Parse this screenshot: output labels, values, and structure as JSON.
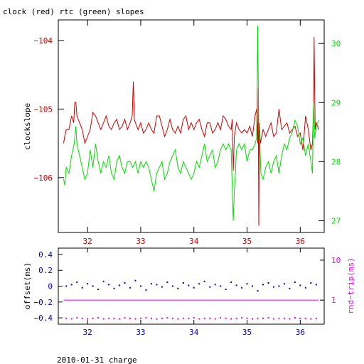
{
  "title": "clock (red) rtc (green) slopes",
  "footer": "2010-01-31 charge",
  "colors": {
    "frame": "#000000",
    "clock": "#cc0000",
    "rtc": "#00dd00",
    "offset": "#0000cc",
    "rndtrip": "#ee00ee"
  },
  "chart_data": [
    {
      "type": "line",
      "title": "clock (red) rtc (green) slopes",
      "xlim": [
        31.45,
        36.45
      ],
      "x_ticks": [
        32,
        33,
        34,
        35,
        36
      ],
      "x_tick_labels": [
        "32",
        "33",
        "34",
        "35",
        "36"
      ],
      "ylabel": "clockslope",
      "ylim": [
        -106.8,
        -103.7
      ],
      "y_ticks": [
        -104,
        -105,
        -106
      ],
      "y_tick_labels": [
        "−104",
        "−105",
        "−106"
      ],
      "y2lim": [
        26.8,
        30.4
      ],
      "y2_ticks": [
        27,
        28,
        29,
        30
      ],
      "y2_tick_labels": [
        "27",
        "28",
        "29",
        "30"
      ],
      "series": [
        {
          "name": "clock",
          "axis": "left",
          "x": [
            31.55,
            31.57,
            31.6,
            31.65,
            31.7,
            31.74,
            31.76,
            31.78,
            31.8,
            31.85,
            31.9,
            31.95,
            32.0,
            32.05,
            32.1,
            32.15,
            32.2,
            32.25,
            32.3,
            32.35,
            32.4,
            32.45,
            32.5,
            32.55,
            32.6,
            32.65,
            32.7,
            32.75,
            32.8,
            32.84,
            32.86,
            32.88,
            32.9,
            32.95,
            33.0,
            33.05,
            33.1,
            33.15,
            33.2,
            33.25,
            33.3,
            33.35,
            33.4,
            33.45,
            33.5,
            33.55,
            33.6,
            33.65,
            33.7,
            33.75,
            33.8,
            33.85,
            33.9,
            33.95,
            34.0,
            34.05,
            34.1,
            34.15,
            34.2,
            34.25,
            34.3,
            34.35,
            34.4,
            34.45,
            34.5,
            34.55,
            34.6,
            34.65,
            34.7,
            34.72,
            34.74,
            34.76,
            34.8,
            34.85,
            34.9,
            34.95,
            35.0,
            35.05,
            35.1,
            35.15,
            35.18,
            35.2,
            35.21,
            35.22,
            35.23,
            35.25,
            35.3,
            35.35,
            35.4,
            35.45,
            35.5,
            35.55,
            35.6,
            35.65,
            35.7,
            35.75,
            35.8,
            35.85,
            35.9,
            35.95,
            36.0,
            36.05,
            36.1,
            36.15,
            36.2,
            36.23,
            36.25,
            36.26,
            36.28,
            36.3,
            36.35
          ],
          "y": [
            -105.5,
            -105.4,
            -105.3,
            -105.3,
            -105.1,
            -105.2,
            -104.9,
            -104.9,
            -105.1,
            -105.2,
            -105.3,
            -105.5,
            -105.4,
            -105.3,
            -105.05,
            -105.1,
            -105.2,
            -105.3,
            -105.2,
            -105.1,
            -105.25,
            -105.3,
            -105.2,
            -105.15,
            -105.3,
            -105.25,
            -105.15,
            -105.3,
            -105.2,
            -105.1,
            -104.6,
            -105.15,
            -105.2,
            -105.3,
            -105.2,
            -105.35,
            -105.3,
            -105.2,
            -105.3,
            -105.35,
            -105.1,
            -105.1,
            -105.25,
            -105.4,
            -105.3,
            -105.15,
            -105.3,
            -105.35,
            -105.25,
            -105.35,
            -105.15,
            -105.1,
            -105.3,
            -105.2,
            -105.3,
            -105.2,
            -105.15,
            -105.3,
            -105.4,
            -105.2,
            -105.2,
            -105.35,
            -105.3,
            -105.2,
            -105.3,
            -105.1,
            -105.15,
            -105.25,
            -105.3,
            -105.15,
            -105.9,
            -105.4,
            -105.2,
            -105.3,
            -105.35,
            -105.3,
            -105.35,
            -105.25,
            -105.4,
            -105.1,
            -105.0,
            -105.5,
            -104.7,
            -106.7,
            -105.2,
            -105.5,
            -105.3,
            -105.4,
            -105.3,
            -105.2,
            -105.4,
            -105.35,
            -105.0,
            -105.3,
            -105.25,
            -105.2,
            -105.35,
            -105.3,
            -105.25,
            -105.4,
            -105.35,
            -105.6,
            -105.1,
            -105.3,
            -105.6,
            -105.5,
            -105.0,
            -103.95,
            -105.3,
            -105.2,
            -105.3
          ],
          "color": "#cc0000"
        },
        {
          "name": "rtc",
          "axis": "right",
          "x": [
            31.55,
            31.57,
            31.6,
            31.65,
            31.7,
            31.75,
            31.78,
            31.8,
            31.85,
            31.9,
            31.95,
            32.0,
            32.05,
            32.1,
            32.15,
            32.2,
            32.25,
            32.3,
            32.35,
            32.4,
            32.45,
            32.5,
            32.55,
            32.6,
            32.65,
            32.7,
            32.75,
            32.8,
            32.85,
            32.9,
            32.95,
            33.0,
            33.05,
            33.1,
            33.15,
            33.2,
            33.25,
            33.3,
            33.35,
            33.4,
            33.45,
            33.5,
            33.55,
            33.6,
            33.65,
            33.7,
            33.75,
            33.8,
            33.85,
            33.9,
            33.95,
            34.0,
            34.05,
            34.1,
            34.15,
            34.2,
            34.25,
            34.3,
            34.35,
            34.4,
            34.45,
            34.5,
            34.55,
            34.6,
            34.65,
            34.7,
            34.72,
            34.74,
            34.76,
            34.78,
            34.8,
            34.85,
            34.9,
            34.95,
            35.0,
            35.05,
            35.1,
            35.15,
            35.18,
            35.2,
            35.22,
            35.24,
            35.26,
            35.3,
            35.35,
            35.4,
            35.45,
            35.5,
            35.55,
            35.6,
            35.65,
            35.7,
            35.75,
            35.8,
            35.85,
            35.9,
            35.95,
            36.0,
            36.05,
            36.1,
            36.15,
            36.2,
            36.23,
            36.25,
            36.27,
            36.3,
            36.35
          ],
          "y": [
            27.7,
            27.6,
            27.9,
            27.8,
            28.1,
            28.3,
            28.6,
            28.3,
            28.1,
            27.9,
            27.7,
            27.8,
            28.2,
            27.9,
            28.3,
            28.0,
            27.8,
            28.0,
            27.9,
            28.1,
            27.8,
            27.7,
            28.0,
            28.1,
            27.9,
            27.8,
            28.0,
            28.0,
            27.9,
            28.0,
            27.8,
            28.0,
            27.9,
            28.0,
            27.9,
            27.7,
            27.5,
            27.8,
            27.9,
            28.0,
            27.7,
            27.8,
            28.0,
            28.1,
            28.2,
            27.9,
            27.8,
            28.0,
            27.9,
            27.8,
            27.7,
            27.8,
            28.0,
            27.9,
            28.1,
            28.3,
            28.0,
            28.1,
            28.2,
            27.9,
            28.0,
            28.2,
            28.3,
            28.2,
            28.3,
            28.2,
            27.6,
            27.0,
            27.5,
            27.8,
            28.2,
            28.3,
            28.2,
            28.3,
            28.0,
            28.2,
            28.2,
            28.3,
            28.4,
            30.3,
            28.5,
            28.3,
            27.8,
            27.7,
            27.9,
            28.0,
            27.8,
            28.0,
            28.1,
            27.8,
            28.1,
            28.3,
            28.2,
            28.4,
            28.5,
            28.7,
            28.6,
            28.3,
            28.4,
            28.1,
            28.3,
            28.0,
            27.8,
            29.0,
            28.4,
            28.6,
            28.7
          ],
          "color": "#00dd00"
        }
      ]
    },
    {
      "type": "scatter",
      "xlim": [
        31.45,
        36.45
      ],
      "x_ticks": [
        32,
        33,
        34,
        35,
        36
      ],
      "x_tick_labels": [
        "32",
        "33",
        "34",
        "35",
        "36"
      ],
      "ylabel": "offset(ms)",
      "ylim": [
        -0.48,
        0.48
      ],
      "y_ticks": [
        0.4,
        0.2,
        0,
        -0.2,
        -0.4
      ],
      "y_tick_labels": [
        "0.4",
        "0.2",
        "0",
        "−0.2",
        "−0.4"
      ],
      "y2label": "rnd−trip(ms)",
      "y2_scale": "log",
      "y2lim": [
        0.25,
        20
      ],
      "y2_ticks": [
        1,
        10
      ],
      "y2_tick_labels": [
        "1",
        "10"
      ],
      "series": [
        {
          "name": "offset",
          "axis": "left",
          "x": [
            31.6,
            31.7,
            31.8,
            31.9,
            32.0,
            32.1,
            32.2,
            32.3,
            32.4,
            32.5,
            32.6,
            32.7,
            32.8,
            32.9,
            33.0,
            33.1,
            33.2,
            33.3,
            33.4,
            33.5,
            33.6,
            33.7,
            33.8,
            33.9,
            34.0,
            34.1,
            34.2,
            34.3,
            34.4,
            34.5,
            34.6,
            34.7,
            34.8,
            34.9,
            35.0,
            35.1,
            35.2,
            35.3,
            35.4,
            35.5,
            35.6,
            35.7,
            35.8,
            35.9,
            36.0,
            36.1,
            36.2,
            36.3
          ],
          "y": [
            0.0,
            0.02,
            0.05,
            -0.02,
            0.03,
            0.0,
            -0.04,
            0.06,
            0.02,
            -0.03,
            0.01,
            0.04,
            -0.02,
            0.07,
            0.0,
            -0.05,
            0.03,
            0.02,
            -0.01,
            0.05,
            0.0,
            -0.03,
            0.04,
            0.01,
            -0.02,
            0.03,
            0.06,
            -0.01,
            0.02,
            0.0,
            -0.04,
            0.05,
            0.01,
            -0.02,
            0.03,
            0.0,
            -0.06,
            0.02,
            0.04,
            -0.01,
            0.0,
            0.03,
            -0.03,
            0.05,
            0.01,
            -0.02,
            0.04,
            0.02
          ],
          "color": "#0000cc"
        },
        {
          "name": "rnd-trip",
          "axis": "right",
          "x": [
            31.6,
            31.7,
            31.8,
            31.9,
            32.0,
            32.1,
            32.2,
            32.3,
            32.4,
            32.5,
            32.6,
            32.7,
            32.8,
            32.9,
            33.0,
            33.1,
            33.2,
            33.3,
            33.4,
            33.5,
            33.6,
            33.7,
            33.8,
            33.9,
            34.0,
            34.1,
            34.2,
            34.3,
            34.4,
            34.5,
            34.6,
            34.7,
            34.8,
            34.9,
            35.0,
            35.1,
            35.2,
            35.3,
            35.4,
            35.5,
            35.6,
            35.7,
            35.8,
            35.9,
            36.0,
            36.1,
            36.2,
            36.3
          ],
          "y": [
            0.35,
            0.34,
            0.36,
            0.35,
            0.34,
            0.35,
            0.36,
            0.34,
            0.35,
            0.35,
            0.34,
            0.36,
            0.35,
            0.34,
            0.35,
            0.36,
            0.35,
            0.34,
            0.35,
            0.36,
            0.35,
            0.34,
            0.35,
            0.35,
            0.36,
            0.34,
            0.35,
            0.35,
            0.34,
            0.36,
            0.35,
            0.34,
            0.35,
            0.36,
            0.35,
            0.34,
            0.35,
            0.35,
            0.36,
            0.34,
            0.35,
            0.35,
            0.34,
            0.36,
            0.35,
            0.35,
            0.34,
            0.35
          ],
          "color": "#ee00ee"
        }
      ]
    }
  ]
}
